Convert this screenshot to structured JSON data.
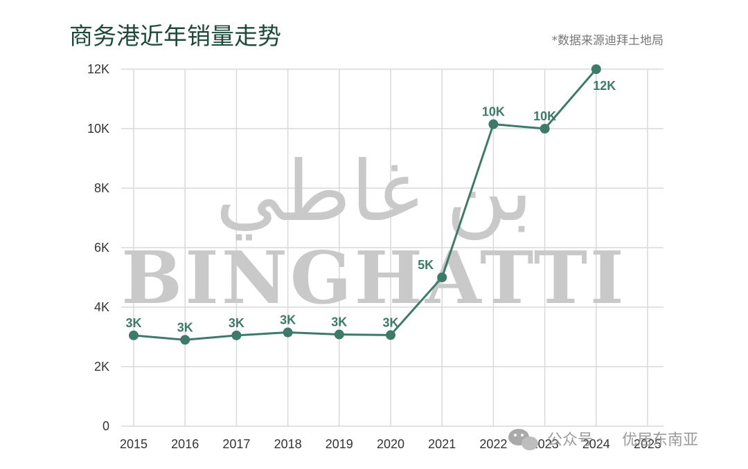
{
  "title": "商务港近年销量走势",
  "source_note": "*数据来源迪拜土地局",
  "watermark": {
    "arabic": "بن غاطي",
    "latin": "BINGHATTI"
  },
  "footer": {
    "channel_prefix": "公众号 ·",
    "channel_name": "优居东南亚"
  },
  "colors": {
    "series": "#3d7a6a",
    "grid": "#d9d9d9",
    "title": "#1f4a3a"
  },
  "chart_data": {
    "type": "line",
    "title": "商务港近年销量走势",
    "x": [
      "2015",
      "2016",
      "2017",
      "2018",
      "2019",
      "2020",
      "2021",
      "2022",
      "2023",
      "2024",
      "2025"
    ],
    "series": [
      {
        "values": [
          3050,
          2900,
          3050,
          3150,
          3080,
          3060,
          5000,
          10150,
          10000,
          12000,
          null
        ],
        "labels": [
          "3K",
          "3K",
          "3K",
          "3K",
          "3K",
          "3K",
          "5K",
          "10K",
          "10K",
          "12K",
          null
        ]
      }
    ],
    "y_ticks": [
      0,
      2000,
      4000,
      6000,
      8000,
      10000,
      12000
    ],
    "y_tick_labels": [
      "0",
      "2K",
      "4K",
      "6K",
      "8K",
      "10K",
      "12K"
    ],
    "ylim": [
      0,
      12000
    ],
    "grid": true,
    "legend": "none"
  }
}
